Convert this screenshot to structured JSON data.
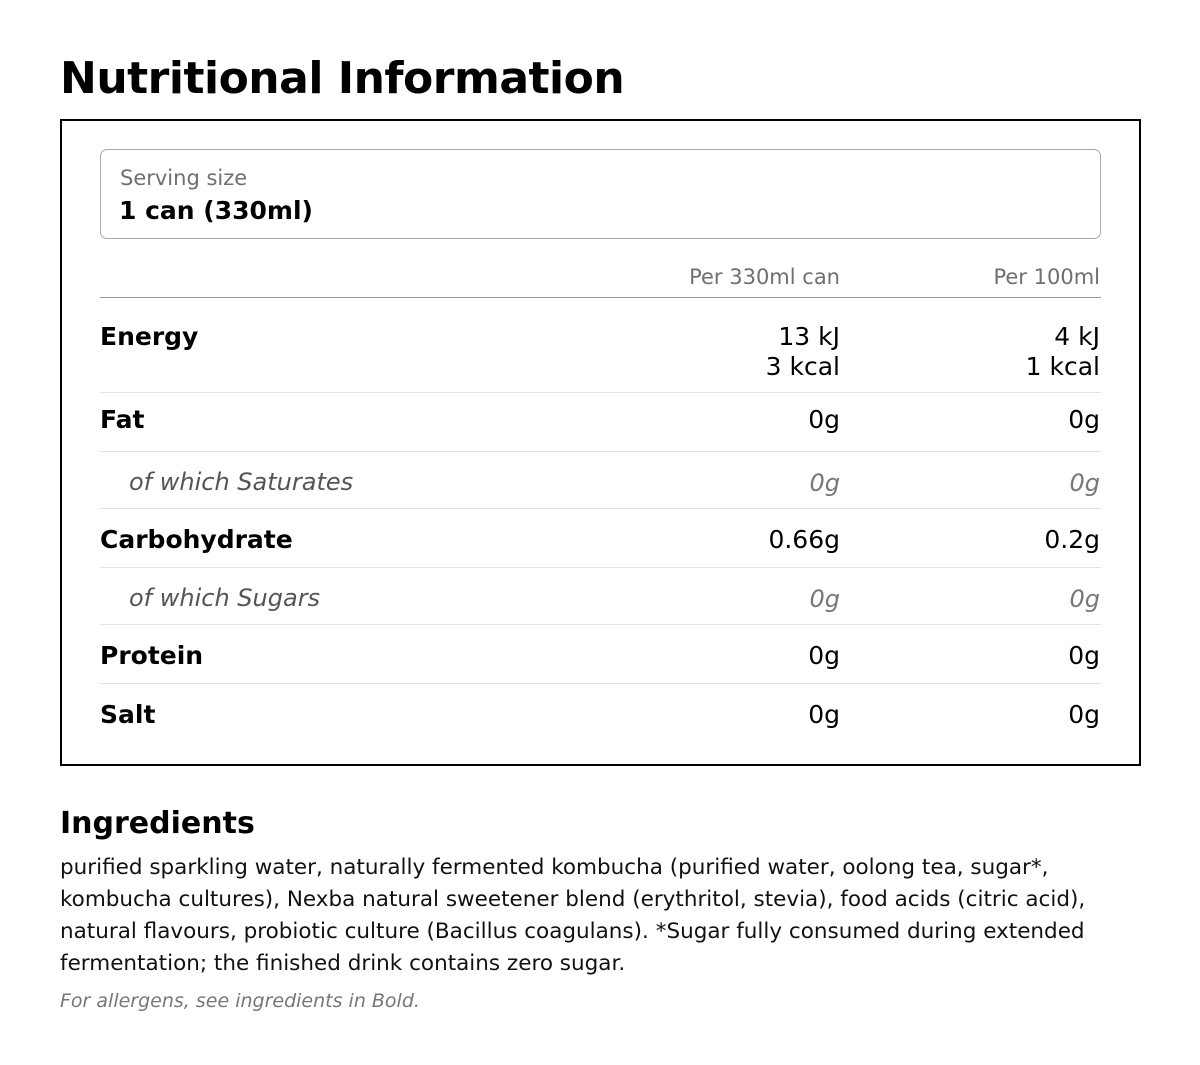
{
  "title": "Nutritional Information",
  "serving": {
    "label": "Serving size",
    "value": "1 can (330ml)"
  },
  "columns": {
    "per_can": "Per 330ml can",
    "per_100ml": "Per 100ml"
  },
  "rows": [
    {
      "label": "Energy",
      "per_can": [
        "13 kJ",
        "3 kcal"
      ],
      "per_100ml": [
        "4 kJ",
        "1 kcal"
      ],
      "sub": false
    },
    {
      "label": "Fat",
      "per_can": [
        "0g"
      ],
      "per_100ml": [
        "0g"
      ],
      "sub": false
    },
    {
      "label": "of which Saturates",
      "per_can": [
        "0g"
      ],
      "per_100ml": [
        "0g"
      ],
      "sub": true
    },
    {
      "label": "Carbohydrate",
      "per_can": [
        "0.66g"
      ],
      "per_100ml": [
        "0.2g"
      ],
      "sub": false
    },
    {
      "label": "of which Sugars",
      "per_can": [
        "0g"
      ],
      "per_100ml": [
        "0g"
      ],
      "sub": true
    },
    {
      "label": "Protein",
      "per_can": [
        "0g"
      ],
      "per_100ml": [
        "0g"
      ],
      "sub": false
    },
    {
      "label": "Salt",
      "per_can": [
        "0g"
      ],
      "per_100ml": [
        "0g"
      ],
      "sub": false
    }
  ],
  "ingredients": {
    "title": "Ingredients",
    "text": "purified sparkling water, naturally fermented kombucha (purified water, oolong tea, sugar*, kombucha cultures), Nexba natural sweetener blend (erythritol, stevia), food acids (citric acid), natural flavours, probiotic culture (Bacillus coagulans). *Sugar fully consumed during extended fermentation; the finished drink contains zero sugar.",
    "allergen_note": "For allergens, see ingredients in Bold."
  }
}
